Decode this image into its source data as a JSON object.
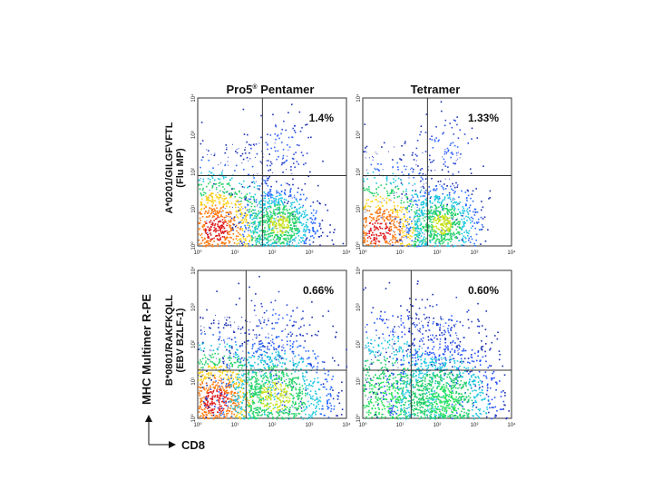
{
  "figure": {
    "y_axis_label": "MHC Multimer R-PE",
    "x_axis_label": "CD8"
  },
  "columns": [
    {
      "title_main": "Pro5",
      "title_sup": "®",
      "title_rest": " Pentamer"
    },
    {
      "title": "Tetramer"
    }
  ],
  "rows": [
    {
      "line1": "A*0201/GILGFVFTL",
      "line2": "(Flu MP)"
    },
    {
      "line1": "B*0801/RAKFKQLL",
      "line2": "(EBV BZLF-1)"
    }
  ],
  "chart_data": [
    {
      "type": "scatter",
      "subtype": "flow-cytometry-density",
      "panel": "Pro5 Pentamer / A*0201/GILGFVFTL (Flu MP)",
      "xscale": "log",
      "yscale": "log",
      "xlim": [
        1,
        10000
      ],
      "ylim": [
        1,
        10000
      ],
      "xticks": [
        "10⁰",
        "10¹",
        "10²",
        "10³",
        "10⁴"
      ],
      "yticks": [
        "10⁰",
        "10¹",
        "10²",
        "10³",
        "10⁴"
      ],
      "quadrant_gate": {
        "x": 55,
        "y": 80
      },
      "upper_right_percent": "1.4%",
      "populations": [
        {
          "x": 3,
          "y": 3,
          "spread": 0.22,
          "count": 1400,
          "intensity": "high"
        },
        {
          "x": 150,
          "y": 4,
          "spread": 0.13,
          "count": 800,
          "intensity": "medium"
        },
        {
          "x": 160,
          "y": 500,
          "spread": 0.12,
          "count": 90,
          "intensity": "low"
        }
      ]
    },
    {
      "type": "scatter",
      "subtype": "flow-cytometry-density",
      "panel": "Tetramer / A*0201/GILGFVFTL (Flu MP)",
      "xscale": "log",
      "yscale": "log",
      "xlim": [
        1,
        10000
      ],
      "ylim": [
        1,
        10000
      ],
      "xticks": [
        "10⁰",
        "10¹",
        "10²",
        "10³",
        "10⁴"
      ],
      "yticks": [
        "10⁰",
        "10¹",
        "10²",
        "10³",
        "10⁴"
      ],
      "quadrant_gate": {
        "x": 55,
        "y": 80
      },
      "upper_right_percent": "1.33%",
      "populations": [
        {
          "x": 2.5,
          "y": 2.5,
          "spread": 0.22,
          "count": 1300,
          "intensity": "high"
        },
        {
          "x": 130,
          "y": 4,
          "spread": 0.13,
          "count": 800,
          "intensity": "medium"
        },
        {
          "x": 150,
          "y": 450,
          "spread": 0.12,
          "count": 80,
          "intensity": "low"
        }
      ]
    },
    {
      "type": "scatter",
      "subtype": "flow-cytometry-density",
      "panel": "Pro5 Pentamer / B*0801/RAKFKQLL (EBV BZLF-1)",
      "xscale": "log",
      "yscale": "log",
      "xlim": [
        1,
        10000
      ],
      "ylim": [
        1,
        10000
      ],
      "xticks": [
        "10⁰",
        "10¹",
        "10²",
        "10³",
        "10⁴"
      ],
      "yticks": [
        "10⁰",
        "10¹",
        "10²",
        "10³",
        "10⁴"
      ],
      "quadrant_gate": {
        "x": 20,
        "y": 20
      },
      "upper_right_percent": "0.66%",
      "populations": [
        {
          "x": 3,
          "y": 3,
          "spread": 0.22,
          "count": 1500,
          "intensity": "high"
        },
        {
          "x": 120,
          "y": 4,
          "spread": 0.2,
          "count": 1200,
          "intensity": "medium"
        },
        {
          "x": 100,
          "y": 300,
          "spread": 0.15,
          "count": 90,
          "intensity": "low"
        }
      ]
    },
    {
      "type": "scatter",
      "subtype": "flow-cytometry-density",
      "panel": "Tetramer / B*0801/RAKFKQLL (EBV BZLF-1)",
      "xscale": "log",
      "yscale": "log",
      "xlim": [
        1,
        10000
      ],
      "ylim": [
        1,
        10000
      ],
      "xticks": [
        "10⁰",
        "10¹",
        "10²",
        "10³",
        "10⁴"
      ],
      "yticks": [
        "10⁰",
        "10¹",
        "10²",
        "10³",
        "10⁴"
      ],
      "quadrant_gate": {
        "x": 20,
        "y": 20
      },
      "upper_right_percent": "0.60%",
      "populations": [
        {
          "x": 3,
          "y": 2.5,
          "spread": 0.3,
          "count": 1800,
          "intensity": "very-high"
        },
        {
          "x": 130,
          "y": 3,
          "spread": 0.2,
          "count": 1300,
          "intensity": "very-high"
        },
        {
          "x": 140,
          "y": 250,
          "spread": 0.14,
          "count": 90,
          "intensity": "low"
        }
      ]
    }
  ]
}
